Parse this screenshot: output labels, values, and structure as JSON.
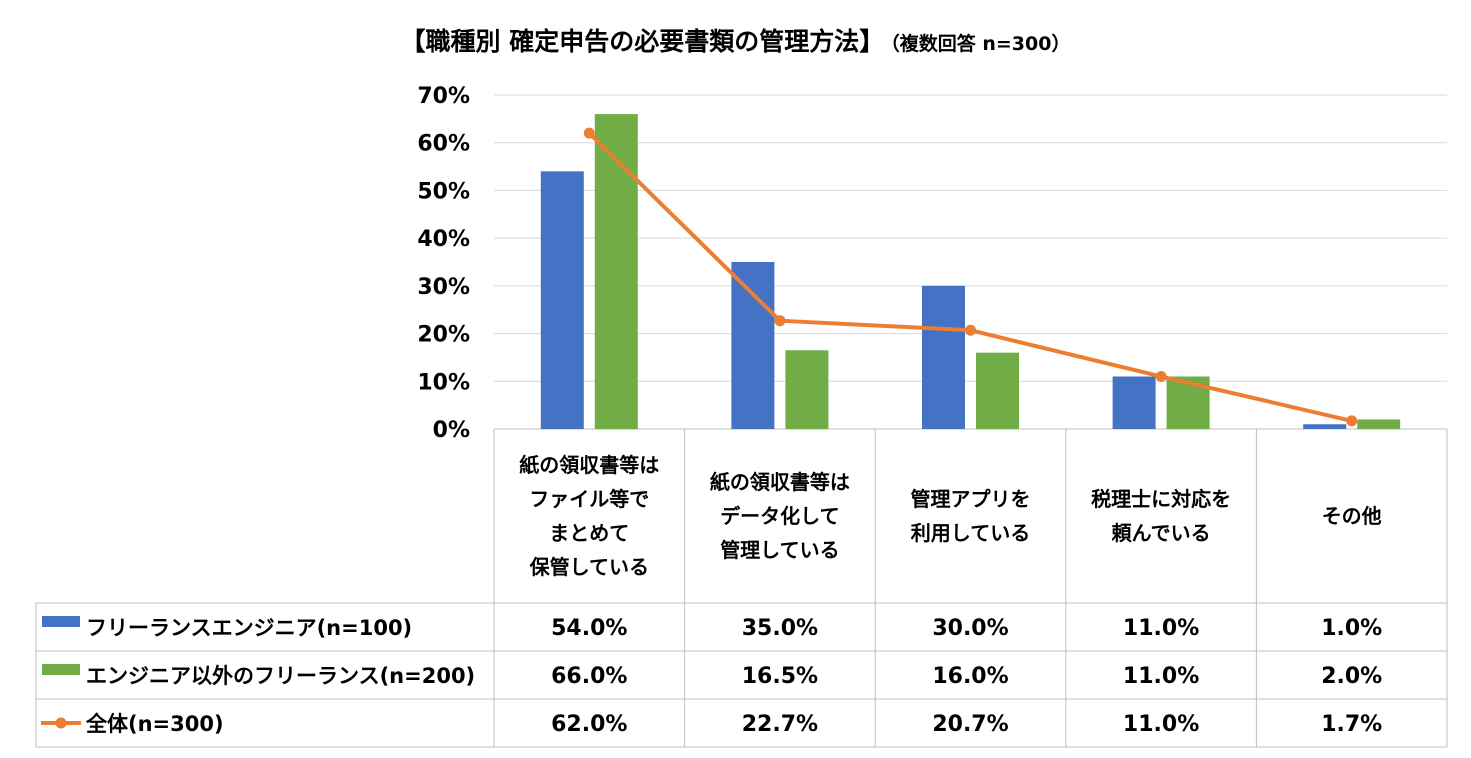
{
  "title": {
    "main": "【職種別 確定申告の必要書類の管理方法】",
    "sub": "（複数回答 n=300）"
  },
  "chart_data": {
    "type": "bar",
    "title": "【職種別 確定申告の必要書類の管理方法】（複数回答 n=300）",
    "xlabel": "",
    "ylabel": "",
    "ylim": [
      0,
      70
    ],
    "yticks": [
      "0%",
      "10%",
      "20%",
      "30%",
      "40%",
      "50%",
      "60%",
      "70%"
    ],
    "grid": true,
    "categories": [
      [
        "紙の領収書等は",
        "ファイル等で",
        "まとめて",
        "保管している"
      ],
      [
        "紙の領収書等は",
        "データ化して",
        "管理している"
      ],
      [
        "管理アプリを",
        "利用している"
      ],
      [
        "税理士に対応を",
        "頼んでいる"
      ],
      [
        "その他"
      ]
    ],
    "series": [
      {
        "name": "フリーランスエンジニア(n=100)",
        "type": "bar",
        "color": "#4472C4",
        "values": [
          54.0,
          35.0,
          30.0,
          11.0,
          1.0
        ],
        "labels": [
          "54.0%",
          "35.0%",
          "30.0%",
          "11.0%",
          "1.0%"
        ]
      },
      {
        "name": "エンジニア以外のフリーランス(n=200)",
        "type": "bar",
        "color": "#70AD47",
        "values": [
          66.0,
          16.5,
          16.0,
          11.0,
          2.0
        ],
        "labels": [
          "66.0%",
          "16.5%",
          "16.0%",
          "11.0%",
          "2.0%"
        ]
      },
      {
        "name": "全体(n=300)",
        "type": "line",
        "color": "#ED7D31",
        "values": [
          62.0,
          22.7,
          20.7,
          11.0,
          1.7
        ],
        "labels": [
          "62.0%",
          "22.7%",
          "20.7%",
          "11.0%",
          "1.7%"
        ]
      }
    ],
    "legend": "data-table"
  }
}
